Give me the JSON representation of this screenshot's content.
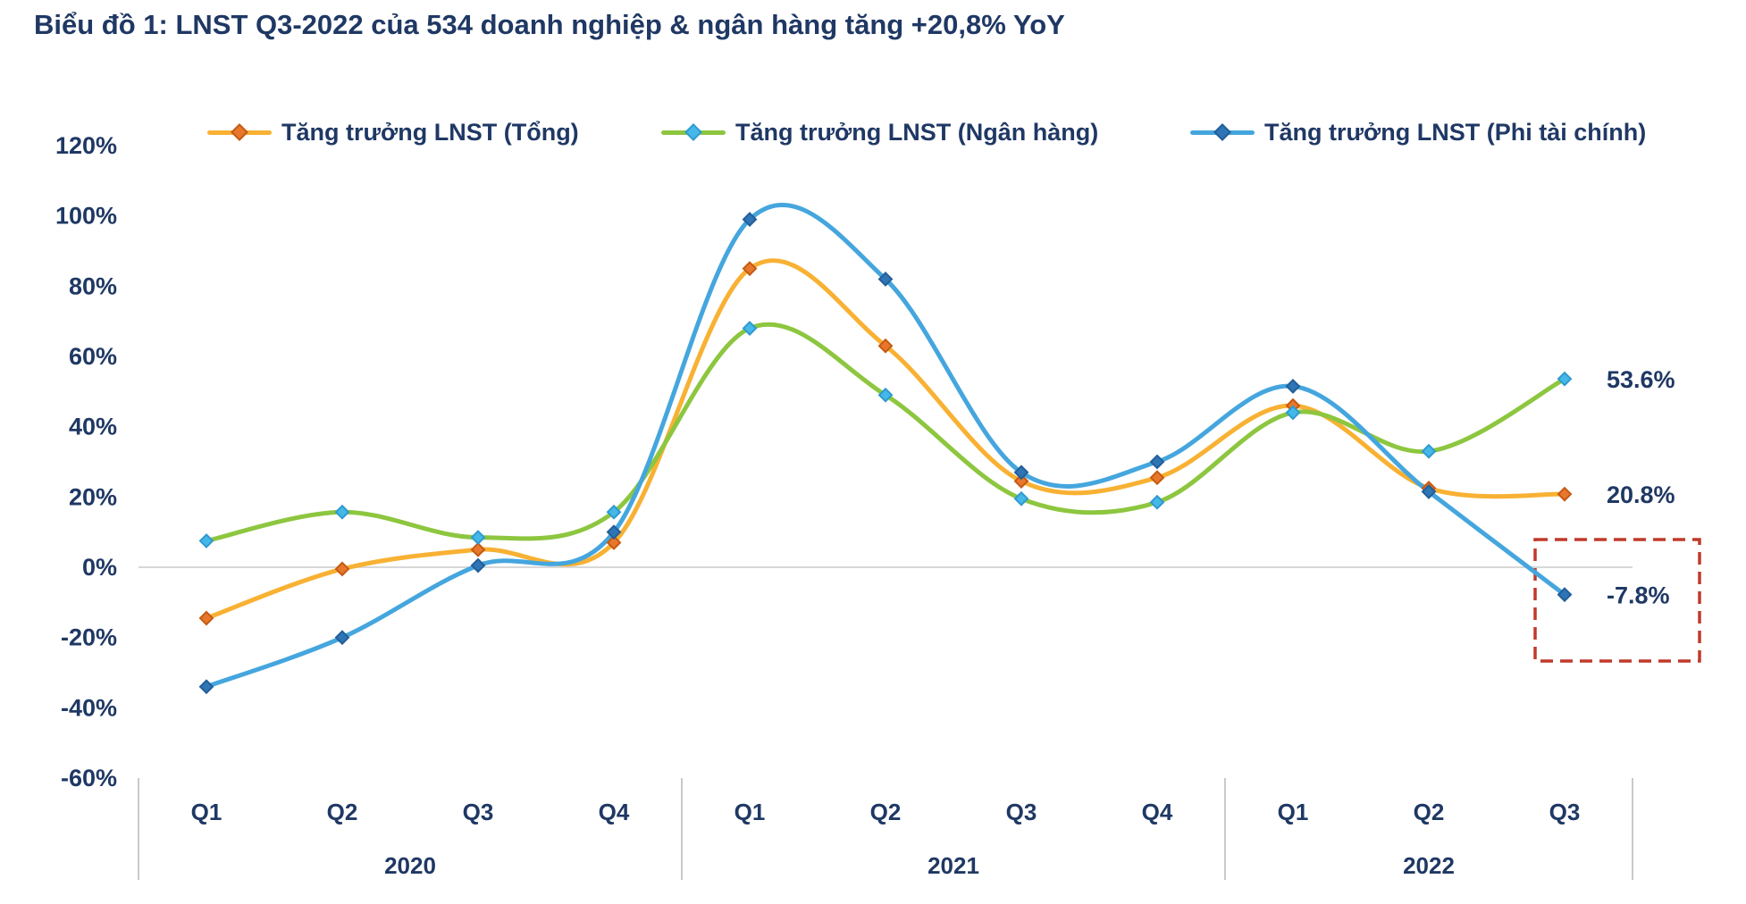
{
  "title": "Biểu đồ 1: LNST Q3-2022 của 534 doanh nghiệp & ngân hàng tăng +20,8% YoY",
  "colors": {
    "text_navy": "#1F3864",
    "gridline": "#D8D8D8",
    "separator": "#C9C9C9",
    "highlight_red": "#C03A2B",
    "background": "#FFFFFF"
  },
  "chart_data": {
    "type": "line",
    "title": "Biểu đồ 1: LNST Q3-2022 của 534 doanh nghiệp & ngân hàng tăng +20,8% YoY",
    "legend_position": "top",
    "grid": "horizontal zero-line only",
    "smoothed_lines": true,
    "marker_shape": "diamond",
    "ylim": [
      -60,
      120
    ],
    "ystep": 20,
    "y_tick_labels": [
      "120%",
      "100%",
      "80%",
      "60%",
      "40%",
      "20%",
      "0%",
      "-20%",
      "-40%",
      "-60%"
    ],
    "categories": [
      "Q1",
      "Q2",
      "Q3",
      "Q4",
      "Q1",
      "Q2",
      "Q3",
      "Q4",
      "Q1",
      "Q2",
      "Q3"
    ],
    "year_groups": [
      {
        "label": "2020",
        "quarters": 4
      },
      {
        "label": "2021",
        "quarters": 4
      },
      {
        "label": "2022",
        "quarters": 3
      }
    ],
    "unit": "percent YoY",
    "series": [
      {
        "name": "Tăng trưởng LNST (Tổng)",
        "color": "#F8B133",
        "marker_fill": "#E8772E",
        "marker_stroke": "#C55A11",
        "values": [
          -14.5,
          -0.5,
          5,
          7,
          85,
          63,
          24.5,
          25.5,
          46,
          22.5,
          20.8
        ]
      },
      {
        "name": "Tăng trưởng LNST (Ngân hàng)",
        "color": "#8DC63F",
        "marker_fill": "#45B8E8",
        "marker_stroke": "#2F9AD0",
        "values": [
          7.5,
          15.7,
          8.5,
          15.7,
          68,
          49,
          19.5,
          18.5,
          44,
          33,
          53.6
        ]
      },
      {
        "name": "Tăng trưởng LNST (Phi tài chính)",
        "color": "#45A6DE",
        "marker_fill": "#2E75B6",
        "marker_stroke": "#235E98",
        "values": [
          -34,
          -20,
          0.5,
          10,
          99,
          82,
          27,
          30,
          51.5,
          21.5,
          -7.8
        ]
      }
    ],
    "end_labels": [
      {
        "series": 1,
        "text": "53.6%"
      },
      {
        "series": 0,
        "text": "20.8%"
      },
      {
        "series": 2,
        "text": "-7.8%"
      }
    ],
    "highlight_box": {
      "style": "dashed",
      "color": "#C03A2B",
      "around": "Q3 2022 point of Tăng trưởng LNST (Phi tài chính)"
    }
  }
}
